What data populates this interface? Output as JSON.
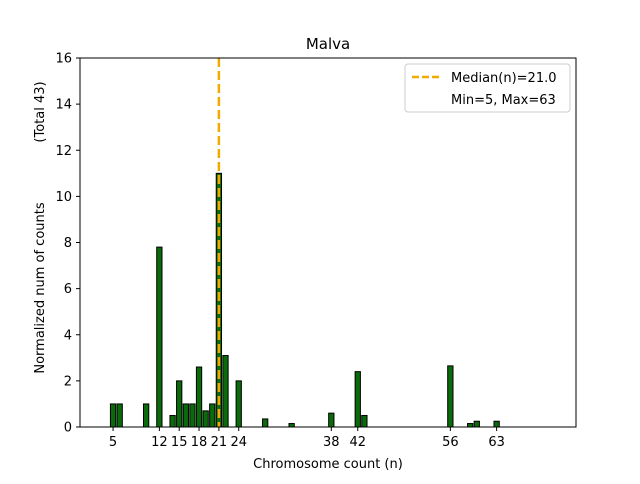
{
  "chart_data": {
    "type": "bar",
    "title": "Malva",
    "xlabel": "Chromosome count (n)",
    "ylabel": "Normalized num of counts",
    "ylabel_total": "(Total 43)",
    "xlim": [
      0,
      75
    ],
    "ylim": [
      0,
      16
    ],
    "yticks": [
      0,
      2,
      4,
      6,
      8,
      10,
      12,
      14,
      16
    ],
    "xticks": [
      5,
      12,
      15,
      18,
      21,
      24,
      38,
      42,
      56,
      63
    ],
    "bar_color": "#0a6b0a",
    "median_color": "#f2a900",
    "median": 21.0,
    "legend": {
      "position": "upper-right",
      "median_label": "Median(n)=21.0",
      "minmax_label": "Min=5, Max=63"
    },
    "x": [
      5,
      6,
      10,
      12,
      14,
      15,
      16,
      17,
      18,
      19,
      20,
      21,
      22,
      24,
      28,
      32,
      38,
      42,
      43,
      56,
      59,
      60,
      63
    ],
    "values": [
      1.0,
      1.0,
      1.0,
      7.8,
      0.5,
      2.0,
      1.0,
      1.0,
      2.6,
      0.7,
      1.0,
      11.0,
      3.1,
      2.0,
      0.35,
      0.15,
      0.6,
      2.4,
      0.5,
      2.65,
      0.15,
      0.25,
      0.25
    ]
  }
}
